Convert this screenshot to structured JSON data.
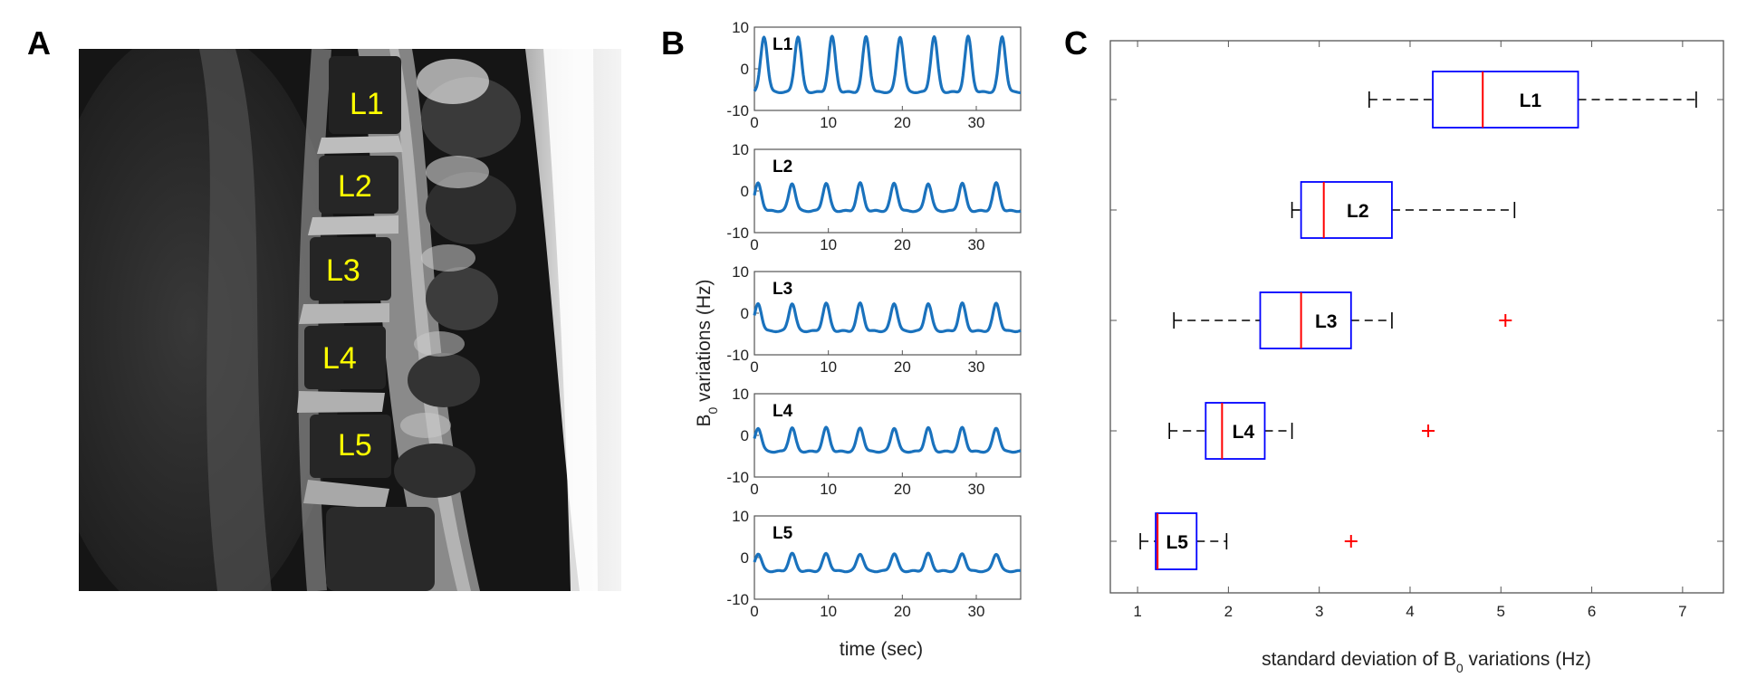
{
  "panels": {
    "a": "A",
    "b": "B",
    "c": "C"
  },
  "mri": {
    "labels": [
      "L1",
      "L2",
      "L3",
      "L4",
      "L5"
    ]
  },
  "chart_data": [
    {
      "type": "line",
      "panel": "B",
      "ylabel_main": "B",
      "ylabel_sub": "0",
      "ylabel_rest": " variations (Hz)",
      "xlabel": "time (sec)",
      "xlim": [
        0,
        36
      ],
      "ylim": [
        -10,
        10
      ],
      "xticks": [
        0,
        10,
        20,
        30
      ],
      "yticks": [
        -10,
        0,
        10
      ],
      "color": "#1a72bd",
      "series": [
        {
          "name": "L1",
          "period": 4.6,
          "phase": 1.0,
          "amplitude": 7,
          "offset": 0
        },
        {
          "name": "L2",
          "period": 4.6,
          "phase": 1.8,
          "amplitude": 3.5,
          "offset": -2
        },
        {
          "name": "L3",
          "period": 4.6,
          "phase": 1.8,
          "amplitude": 3.5,
          "offset": -1.5
        },
        {
          "name": "L4",
          "period": 4.6,
          "phase": 1.8,
          "amplitude": 3.0,
          "offset": -1.5
        },
        {
          "name": "L5",
          "period": 4.6,
          "phase": 1.8,
          "amplitude": 2.2,
          "offset": -1.5
        }
      ]
    },
    {
      "type": "boxplot",
      "panel": "C",
      "orientation": "horizontal",
      "xlabel_main": "standard deviation of B",
      "xlabel_sub": "0",
      "xlabel_rest": " variations (Hz)",
      "xlim": [
        0.7,
        7.45
      ],
      "xticks": [
        1,
        2,
        3,
        4,
        5,
        6,
        7
      ],
      "categories": [
        "L1",
        "L2",
        "L3",
        "L4",
        "L5"
      ],
      "boxes": [
        {
          "name": "L1",
          "whisker_low": 3.55,
          "q1": 4.25,
          "median": 4.8,
          "q3": 5.85,
          "whisker_high": 7.15,
          "outliers": []
        },
        {
          "name": "L2",
          "whisker_low": 2.7,
          "q1": 2.8,
          "median": 3.05,
          "q3": 3.8,
          "whisker_high": 5.15,
          "outliers": []
        },
        {
          "name": "L3",
          "whisker_low": 1.4,
          "q1": 2.35,
          "median": 2.8,
          "q3": 3.35,
          "whisker_high": 3.8,
          "outliers": [
            5.05
          ]
        },
        {
          "name": "L4",
          "whisker_low": 1.35,
          "q1": 1.75,
          "median": 1.93,
          "q3": 2.4,
          "whisker_high": 2.7,
          "outliers": [
            4.2
          ]
        },
        {
          "name": "L5",
          "whisker_low": 1.03,
          "q1": 1.2,
          "median": 1.22,
          "q3": 1.65,
          "whisker_high": 1.98,
          "outliers": [
            3.35
          ]
        }
      ],
      "box_color": "#0000ff",
      "median_color": "#ff0000",
      "outlier_color": "#ff0000"
    }
  ]
}
